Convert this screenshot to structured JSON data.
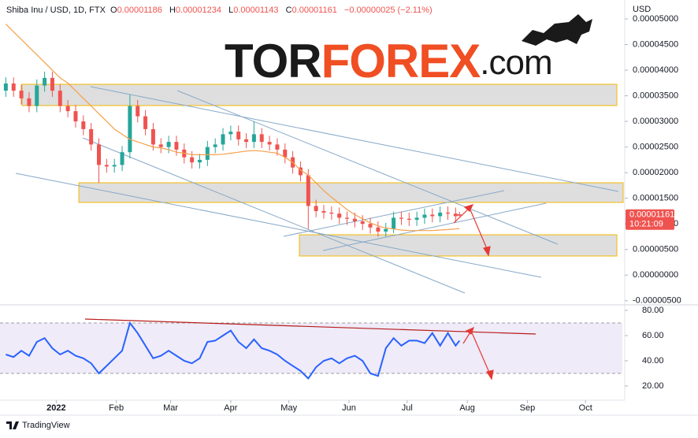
{
  "chart_data": {
    "type": "candlestick",
    "symbol": "Shiba Inu / USD, 1D, FTX",
    "ohlc": [
      {
        "label": "O",
        "value": 1.186e-05
      },
      {
        "label": "H",
        "value": 1.234e-05
      },
      {
        "label": "L",
        "value": 1.143e-05
      },
      {
        "label": "C",
        "value": 1.161e-05
      }
    ],
    "change": "−0.00000025 (−2.11%)",
    "currency": "USD",
    "logo": [
      "TOR",
      "FOREX",
      ".com"
    ],
    "brand": "TradingView",
    "up_color": "#26a69a",
    "down_color": "#ef5350",
    "xlim": [
      -29,
      292
    ],
    "xticks": [
      {
        "value": 0,
        "label": "2022"
      },
      {
        "value": 31,
        "label": "Feb"
      },
      {
        "value": 59,
        "label": "Mar"
      },
      {
        "value": 90,
        "label": "Apr"
      },
      {
        "value": 120,
        "label": "May"
      },
      {
        "value": 151,
        "label": "Jun"
      },
      {
        "value": 181,
        "label": "Jul"
      },
      {
        "value": 212,
        "label": "Aug"
      },
      {
        "value": 243,
        "label": "Sep"
      },
      {
        "value": 273,
        "label": "Oct"
      }
    ],
    "ylim": [
      -5.5e-06,
      5.37e-05
    ],
    "yticks": [
      {
        "value": 5e-05,
        "label": "0.00005000"
      },
      {
        "value": 4.5e-05,
        "label": "0.00004500"
      },
      {
        "value": 4e-05,
        "label": "0.00004000"
      },
      {
        "value": 3.5e-05,
        "label": "0.00003500"
      },
      {
        "value": 3e-05,
        "label": "0.00003000"
      },
      {
        "value": 2.5e-05,
        "label": "0.00002500"
      },
      {
        "value": 2e-05,
        "label": "0.00002000"
      },
      {
        "value": 1.5e-05,
        "label": "0.00001500"
      },
      {
        "value": 1e-05,
        "label": "0.00001000"
      },
      {
        "value": 5e-06,
        "label": "0.00000500"
      },
      {
        "value": 0,
        "label": "0.00000000"
      },
      {
        "value": -5e-06,
        "label": "-0.00000500"
      }
    ],
    "candles": {
      "x": [
        -26,
        -22,
        -18,
        -14,
        -10,
        -6,
        -2,
        2,
        6,
        10,
        14,
        18,
        22,
        26,
        30,
        34,
        38,
        42,
        46,
        50,
        54,
        58,
        62,
        66,
        70,
        74,
        78,
        82,
        86,
        90,
        94,
        98,
        102,
        106,
        110,
        114,
        118,
        122,
        126,
        130,
        134,
        138,
        142,
        146,
        150,
        154,
        158,
        162,
        166,
        170,
        174,
        178,
        182,
        186,
        190,
        194,
        198,
        202,
        206,
        208
      ],
      "open": [
        3.6e-05,
        3.74e-05,
        3.6e-05,
        3.45e-05,
        3.3e-05,
        3.7e-05,
        3.85e-05,
        3.6e-05,
        3.3e-05,
        3.2e-05,
        3e-05,
        2.85e-05,
        2.55e-05,
        2.15e-05,
        2.12e-05,
        2.15e-05,
        2.4e-05,
        3.3e-05,
        3.1e-05,
        2.85e-05,
        2.55e-05,
        2.5e-05,
        2.6e-05,
        2.45e-05,
        2.3e-05,
        2.2e-05,
        2.25e-05,
        2.5e-05,
        2.55e-05,
        2.75e-05,
        2.8e-05,
        2.65e-05,
        2.6e-05,
        2.75e-05,
        2.6e-05,
        2.55e-05,
        2.45e-05,
        2.3e-05,
        2.1e-05,
        1.95e-05,
        1.35e-05,
        1.25e-05,
        1.22e-05,
        1.2e-05,
        1.12e-05,
        1.1e-05,
        1.05e-05,
        1e-05,
        9.3e-06,
        8.5e-06,
        9e-06,
        1.12e-05,
        1.1e-05,
        1.08e-05,
        1.12e-05,
        1.18e-05,
        1.15e-05,
        1.22e-05,
        1.2e-05,
        1.186e-05
      ],
      "high": [
        3.86e-05,
        3.86e-05,
        3.72e-05,
        3.57e-05,
        3.82e-05,
        3.97e-05,
        3.97e-05,
        3.72e-05,
        3.42e-05,
        3.32e-05,
        3.12e-05,
        2.97e-05,
        2.67e-05,
        2.27e-05,
        2.27e-05,
        2.52e-05,
        3.52e-05,
        3.42e-05,
        3.22e-05,
        2.97e-05,
        2.67e-05,
        2.72e-05,
        2.72e-05,
        2.57e-05,
        2.42e-05,
        2.37e-05,
        2.62e-05,
        2.67e-05,
        2.87e-05,
        2.92e-05,
        2.92e-05,
        2.77e-05,
        3e-05,
        2.87e-05,
        2.72e-05,
        2.67e-05,
        2.57e-05,
        2.42e-05,
        2.22e-05,
        2.07e-05,
        1.47e-05,
        1.37e-05,
        1.34e-05,
        1.32e-05,
        1.24e-05,
        1.22e-05,
        1.17e-05,
        1.12e-05,
        1.05e-05,
        1.02e-05,
        1.24e-05,
        1.24e-05,
        1.22e-05,
        1.24e-05,
        1.3e-05,
        1.3e-05,
        1.34e-05,
        1.34e-05,
        1.32e-05,
        1.234e-05
      ],
      "low": [
        3.48e-05,
        3.48e-05,
        3.33e-05,
        3.18e-05,
        3.18e-05,
        3.58e-05,
        3.48e-05,
        3.18e-05,
        3.08e-05,
        2.88e-05,
        2.73e-05,
        2.43e-05,
        1.8e-05,
        2e-05,
        2e-05,
        2.03e-05,
        2.28e-05,
        2.98e-05,
        2.73e-05,
        2.43e-05,
        2.38e-05,
        2.38e-05,
        2.33e-05,
        2.18e-05,
        2.08e-05,
        2.08e-05,
        2.13e-05,
        2.38e-05,
        2.43e-05,
        2.63e-05,
        2.53e-05,
        2.48e-05,
        2.48e-05,
        2.48e-05,
        2.43e-05,
        2.33e-05,
        2.18e-05,
        1.98e-05,
        1.83e-05,
        9e-06,
        1.13e-05,
        1.1e-05,
        1.08e-05,
        1e-05,
        9.8e-06,
        9.3e-06,
        8.8e-06,
        8.1e-06,
        7.5e-06,
        7.5e-06,
        8.2e-06,
        9.8e-06,
        9.6e-06,
        9.6e-06,
        1e-05,
        1.03e-05,
        1.03e-05,
        1.08e-05,
        1.03e-05,
        1.143e-05
      ],
      "close": [
        3.74e-05,
        3.6e-05,
        3.45e-05,
        3.3e-05,
        3.7e-05,
        3.85e-05,
        3.6e-05,
        3.3e-05,
        3.2e-05,
        3e-05,
        2.85e-05,
        2.55e-05,
        2.15e-05,
        2.12e-05,
        2.15e-05,
        2.4e-05,
        3.3e-05,
        3.1e-05,
        2.85e-05,
        2.55e-05,
        2.5e-05,
        2.6e-05,
        2.45e-05,
        2.3e-05,
        2.2e-05,
        2.25e-05,
        2.5e-05,
        2.55e-05,
        2.75e-05,
        2.8e-05,
        2.65e-05,
        2.6e-05,
        2.75e-05,
        2.6e-05,
        2.55e-05,
        2.45e-05,
        2.3e-05,
        2.1e-05,
        1.95e-05,
        1.35e-05,
        1.25e-05,
        1.22e-05,
        1.2e-05,
        1.12e-05,
        1.1e-05,
        1.05e-05,
        1e-05,
        9.3e-06,
        8.5e-06,
        9e-06,
        1.12e-05,
        1.1e-05,
        1.08e-05,
        1.12e-05,
        1.18e-05,
        1.15e-05,
        1.22e-05,
        1.2e-05,
        1.15e-05,
        1.161e-05
      ]
    },
    "ma": {
      "color": "#f5a04a",
      "values": [
        4.9e-05,
        4.75e-05,
        4.6e-05,
        4.45e-05,
        4.3e-05,
        4.15e-05,
        4e-05,
        3.85e-05,
        3.75e-05,
        3.6e-05,
        3.45e-05,
        3.3e-05,
        3.15e-05,
        3e-05,
        2.85e-05,
        2.75e-05,
        2.65e-05,
        2.6e-05,
        2.55e-05,
        2.5e-05,
        2.48e-05,
        2.45e-05,
        2.4e-05,
        2.38e-05,
        2.35e-05,
        2.35e-05,
        2.35e-05,
        2.35e-05,
        2.36e-05,
        2.38e-05,
        2.4e-05,
        2.42e-05,
        2.43e-05,
        2.42e-05,
        2.4e-05,
        2.38e-05,
        2.3e-05,
        2.2e-05,
        2.05e-05,
        1.95e-05,
        1.8e-05,
        1.65e-05,
        1.52e-05,
        1.4e-05,
        1.28e-05,
        1.18e-05,
        1.1e-05,
        1.02e-05,
        9.6e-06,
        9.2e-06,
        9e-06,
        8.8e-06,
        8.7e-06,
        8.7e-06,
        8.7e-06,
        8.7e-06,
        8.8e-06,
        8.9e-06,
        9e-06,
        9.1e-06
      ]
    },
    "last_price": {
      "value": 1.161e-05,
      "label": "0.00001161"
    },
    "countdown": "10:21:09",
    "rsi": {
      "color": "#2962ff",
      "band_color": "#7e57c2",
      "ylim": [
        10.6,
        83.75
      ],
      "yticks": [
        {
          "value": 80,
          "label": "80.00"
        },
        {
          "value": 60,
          "label": "60.00"
        },
        {
          "value": 40,
          "label": "40.00"
        },
        {
          "value": 20,
          "label": "20.00"
        }
      ],
      "band": [
        30,
        70
      ],
      "values": [
        45,
        43,
        48,
        44,
        55,
        58,
        50,
        45,
        48,
        44,
        42,
        38,
        30,
        36,
        42,
        48,
        70,
        62,
        52,
        42,
        44,
        48,
        44,
        40,
        38,
        42,
        55,
        56,
        60,
        64,
        55,
        50,
        57,
        50,
        48,
        45,
        40,
        36,
        32,
        26,
        35,
        40,
        42,
        38,
        42,
        44,
        40,
        30,
        28,
        50,
        58,
        52,
        56,
        56,
        54,
        62,
        52,
        62,
        52,
        56
      ]
    }
  }
}
